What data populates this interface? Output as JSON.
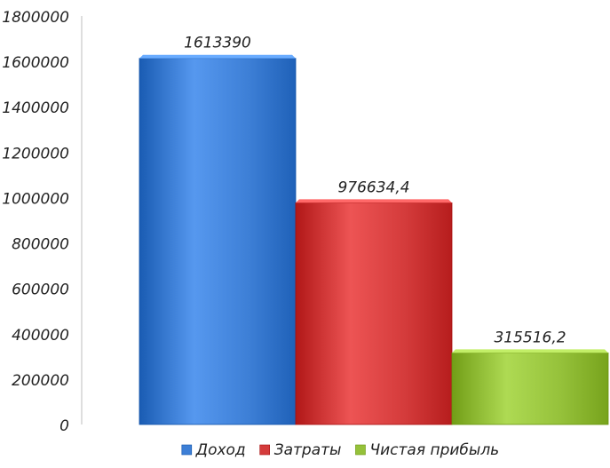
{
  "chart_data": {
    "type": "bar",
    "title": "",
    "xlabel": "",
    "ylabel": "",
    "ylim": [
      0,
      1800000
    ],
    "ytick_step": 200000,
    "y_ticks": [
      "0",
      "200000",
      "400000",
      "600000",
      "800000",
      "1000000",
      "1200000",
      "1400000",
      "1600000",
      "1800000"
    ],
    "grid": false,
    "legend_position": "bottom",
    "series": [
      {
        "name": "Доход",
        "value": 1613390,
        "label": "1613390",
        "color": "#3d7fd6"
      },
      {
        "name": "Затраты",
        "value": 976634.4,
        "label": "976634,4",
        "color": "#d43b3b"
      },
      {
        "name": "Чистая прибыль",
        "value": 315516.2,
        "label": "315516,2",
        "color": "#95c13a"
      }
    ]
  }
}
